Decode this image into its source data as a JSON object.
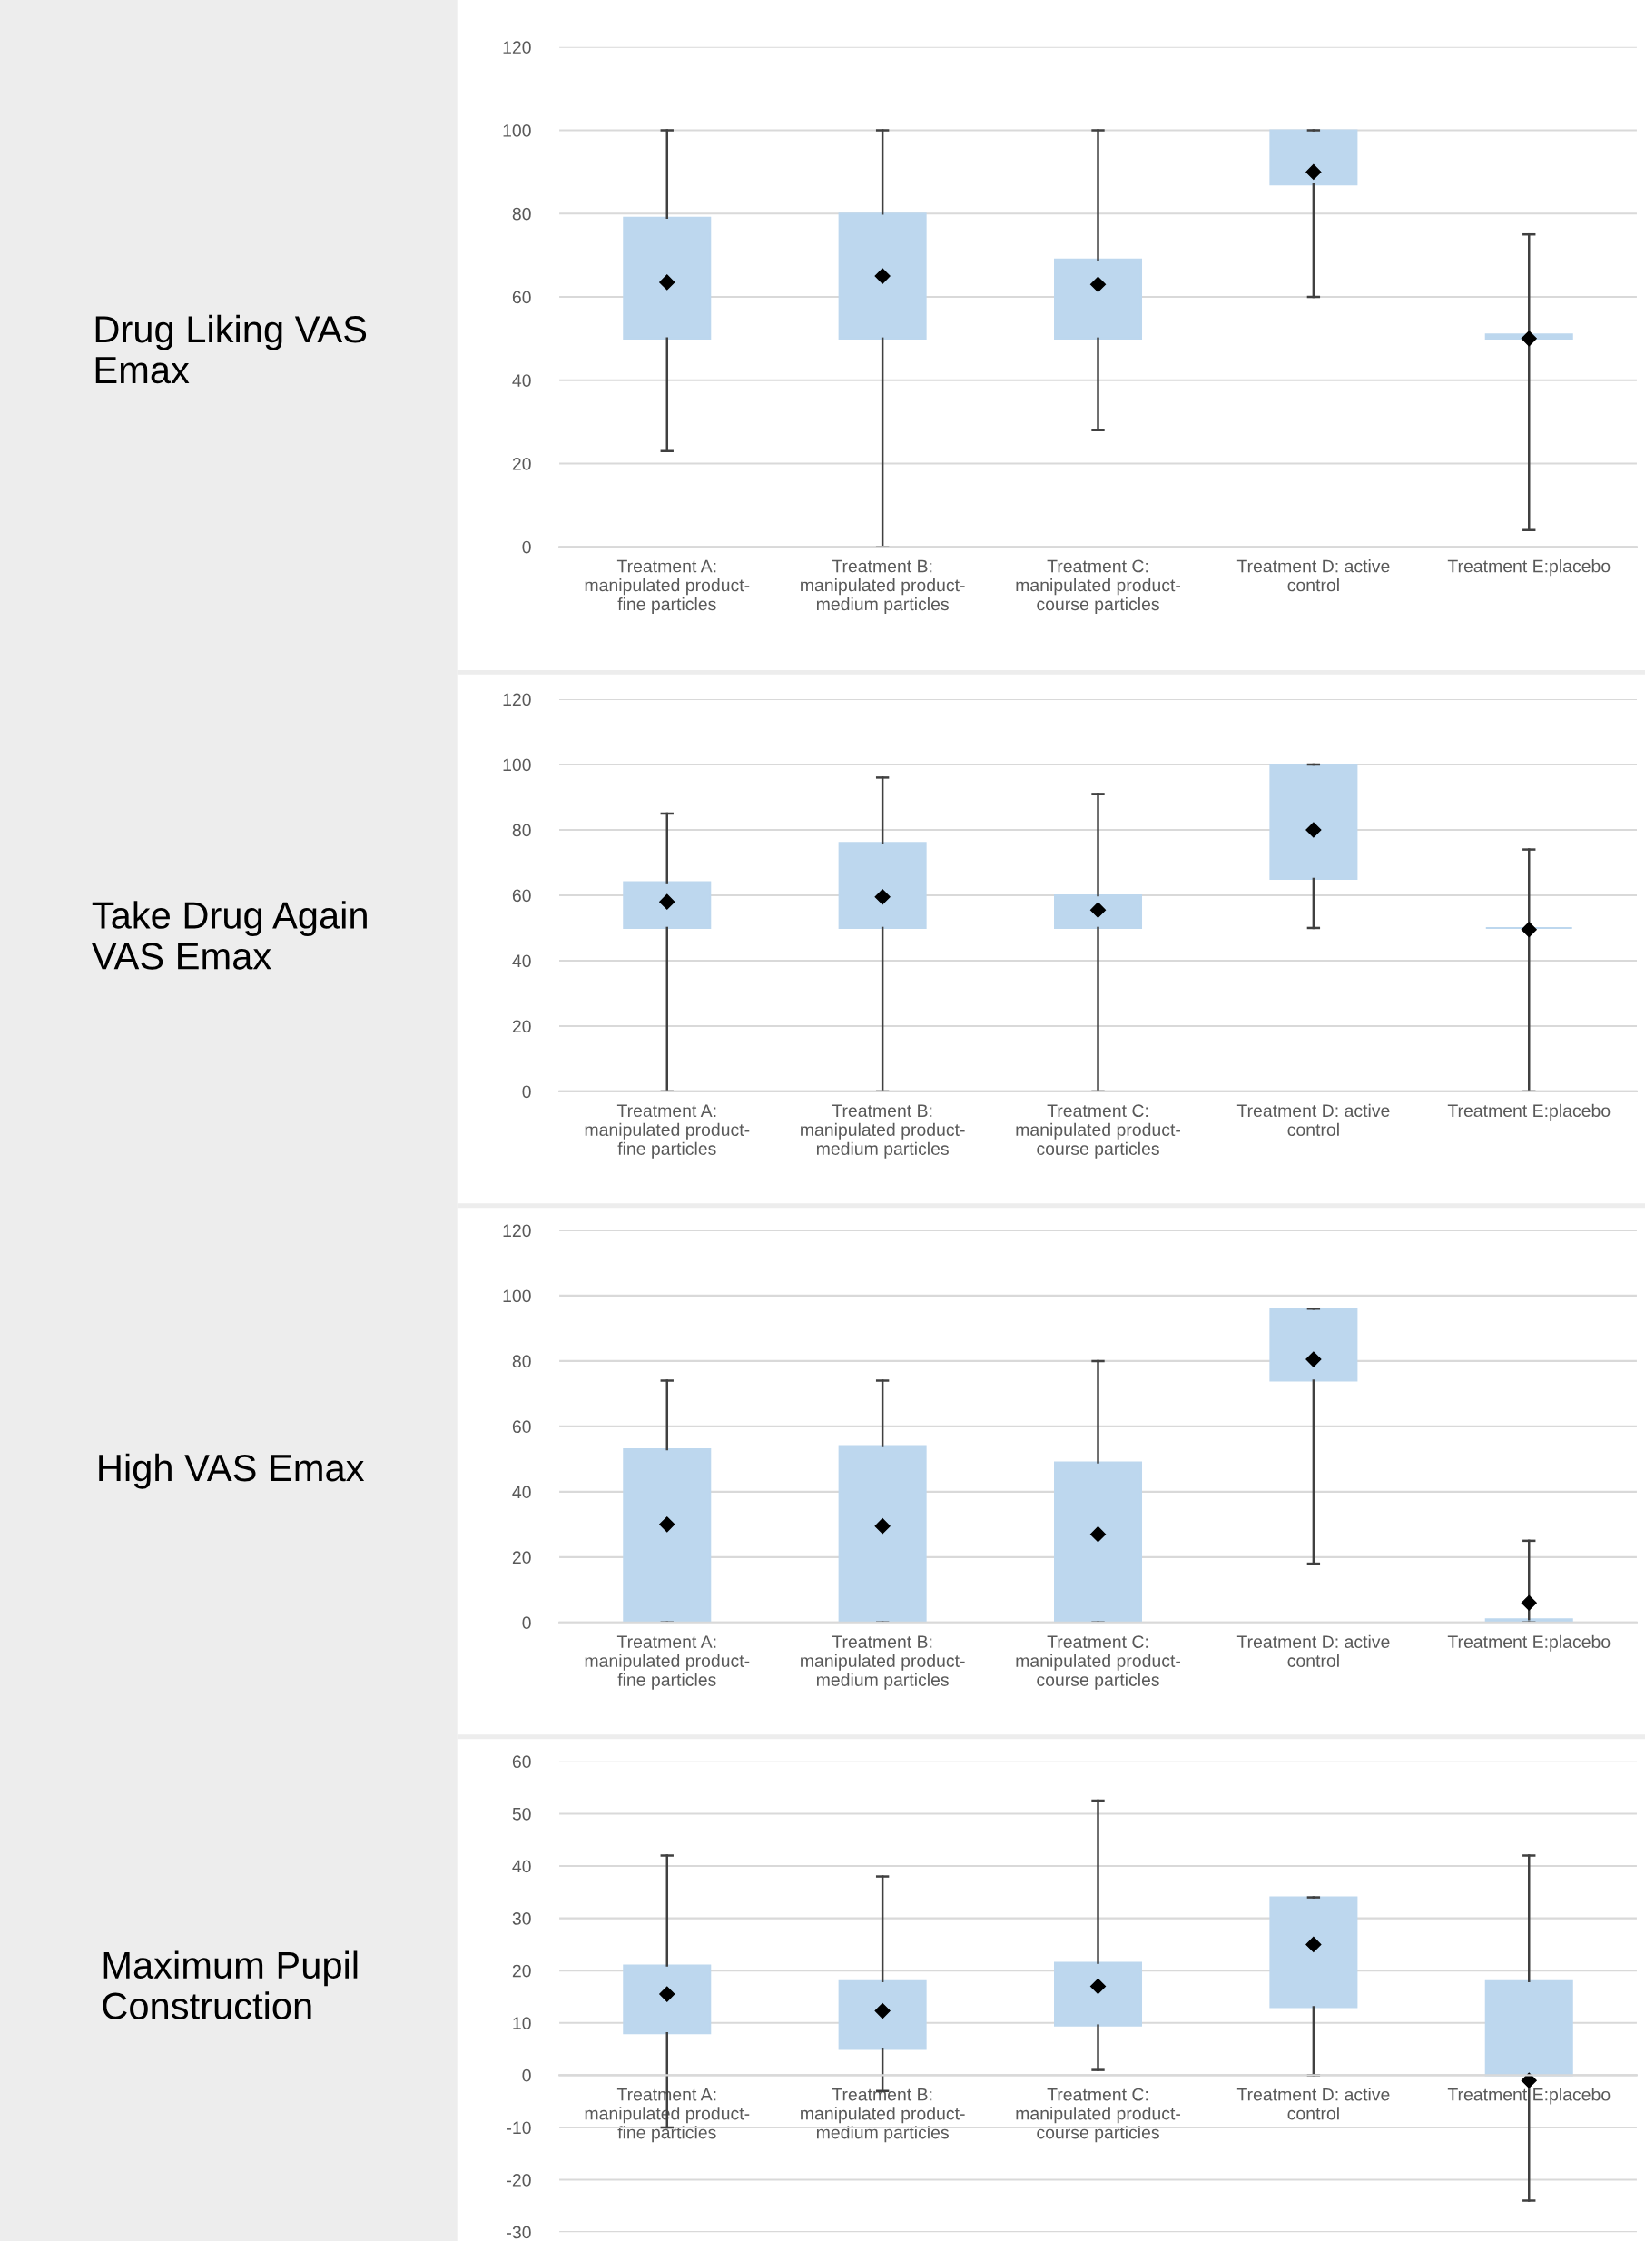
{
  "chart_data": [
    {
      "type": "box",
      "title": "Drug Liking VAS\nEmax",
      "categories": [
        "Treatment A:\nmanipulated product-\nfine particles",
        "Treatment B:\nmanipulated product-\nmedium particles",
        "Treatment C:\nmanipulated product-\ncourse particles",
        "Treatment D: active\ncontrol",
        "Treatment E:placebo"
      ],
      "color": "#bdd7ee",
      "marker": "diamond",
      "grid": "y",
      "ylim": [
        0,
        120
      ],
      "yticks": [
        0,
        20,
        40,
        60,
        80,
        100,
        120
      ],
      "boxes": [
        {
          "low": 23,
          "q1": 50,
          "q3": 79,
          "high": 100,
          "mean": 63.5
        },
        {
          "low": 0,
          "q1": 50,
          "q3": 80,
          "high": 100,
          "mean": 65
        },
        {
          "low": 28,
          "q1": 50,
          "q3": 69,
          "high": 100,
          "mean": 63
        },
        {
          "low": 60,
          "q1": 87,
          "q3": 100,
          "high": 100,
          "mean": 90
        },
        {
          "low": 4,
          "q1": 50,
          "q3": 51,
          "high": 75,
          "mean": 50
        }
      ]
    },
    {
      "type": "box",
      "title": "Take Drug Again\nVAS Emax",
      "categories": [
        "Treatment A:\nmanipulated product-\nfine particles",
        "Treatment B:\nmanipulated product-\nmedium particles",
        "Treatment C:\nmanipulated product-\ncourse particles",
        "Treatment D: active\ncontrol",
        "Treatment E:placebo"
      ],
      "color": "#bdd7ee",
      "marker": "diamond",
      "grid": "y",
      "ylim": [
        0,
        120
      ],
      "yticks": [
        0,
        20,
        40,
        60,
        80,
        100,
        120
      ],
      "boxes": [
        {
          "low": 0,
          "q1": 50,
          "q3": 64,
          "high": 85,
          "mean": 58
        },
        {
          "low": 0,
          "q1": 50,
          "q3": 76,
          "high": 96,
          "mean": 59.5
        },
        {
          "low": 0,
          "q1": 50,
          "q3": 60,
          "high": 91,
          "mean": 55.5
        },
        {
          "low": 50,
          "q1": 65,
          "q3": 100,
          "high": 100,
          "mean": 80
        },
        {
          "low": 0,
          "q1": 50,
          "q3": 50,
          "high": 74,
          "mean": 49.5
        }
      ]
    },
    {
      "type": "box",
      "title": "High VAS Emax",
      "categories": [
        "Treatment A:\nmanipulated product-\nfine particles",
        "Treatment B:\nmanipulated product-\nmedium particles",
        "Treatment C:\nmanipulated product-\ncourse particles",
        "Treatment D: active\ncontrol",
        "Treatment E:placebo"
      ],
      "color": "#bdd7ee",
      "marker": "diamond",
      "grid": "y",
      "ylim": [
        0,
        120
      ],
      "yticks": [
        0,
        20,
        40,
        60,
        80,
        100,
        120
      ],
      "boxes": [
        {
          "low": 0,
          "q1": 0,
          "q3": 53,
          "high": 74,
          "mean": 30
        },
        {
          "low": 0,
          "q1": 0,
          "q3": 54,
          "high": 74,
          "mean": 29.5
        },
        {
          "low": 0,
          "q1": 0,
          "q3": 49,
          "high": 80,
          "mean": 27
        },
        {
          "low": 18,
          "q1": 74,
          "q3": 96,
          "high": 96,
          "mean": 80.5
        },
        {
          "low": 0,
          "q1": 0,
          "q3": 1,
          "high": 25,
          "mean": 6
        }
      ]
    },
    {
      "type": "box",
      "title": "Maximum Pupil\nConstruction",
      "categories": [
        "Treatment A:\nmanipulated product-\nfine particles",
        "Treatment B:\nmanipulated product-\nmedium particles",
        "Treatment C:\nmanipulated product-\ncourse particles",
        "Treatment D: active\ncontrol",
        "Treatment E:placebo"
      ],
      "color": "#bdd7ee",
      "marker": "diamond",
      "grid": "y",
      "ylim": [
        -30,
        60
      ],
      "yticks": [
        -30,
        -20,
        -10,
        0,
        10,
        20,
        30,
        40,
        50,
        60
      ],
      "boxes": [
        {
          "low": -10,
          "q1": 8,
          "q3": 21,
          "high": 42,
          "mean": 15.5
        },
        {
          "low": -3,
          "q1": 5,
          "q3": 18,
          "high": 38,
          "mean": 12.3
        },
        {
          "low": 1,
          "q1": 9.5,
          "q3": 21.5,
          "high": 52.5,
          "mean": 17
        },
        {
          "low": 0,
          "q1": 13,
          "q3": 34,
          "high": 34,
          "mean": 25
        },
        {
          "low": -24,
          "q1": 0,
          "q3": 18,
          "high": 42,
          "mean": -1
        }
      ]
    }
  ]
}
